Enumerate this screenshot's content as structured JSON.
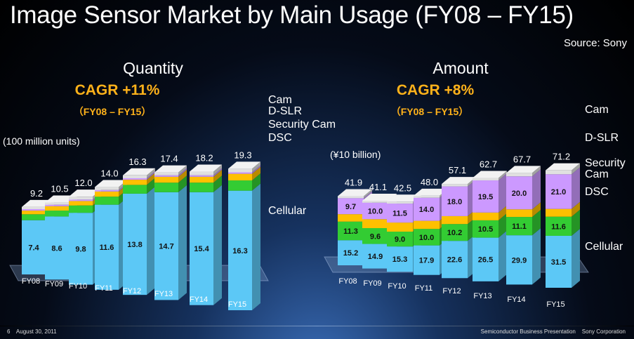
{
  "page": {
    "title": "Image Sensor Market by Main Usage (FY08 – FY15)",
    "source": "Source: Sony",
    "footer_page": "6",
    "footer_date": "August 30, 2011",
    "footer_presentation": "Semiconductor Business Presentation",
    "footer_company": "Sony Corporation"
  },
  "chart_data": [
    {
      "type": "bar",
      "stacked": true,
      "heading": "Quantity",
      "cagr": "CAGR +11%",
      "period": "（FY08 – FY15）",
      "unit_label": "(100 million units)",
      "categories": [
        "FY08",
        "FY09",
        "FY10",
        "FY11",
        "FY12",
        "FY13",
        "FY14",
        "FY15"
      ],
      "totals": [
        "9.2",
        "10.5",
        "12.0",
        "14.0",
        "16.3",
        "17.4",
        "18.2",
        "19.3"
      ],
      "series": [
        {
          "name": "Cellular",
          "values": [
            7.4,
            8.6,
            9.8,
            11.6,
            13.8,
            14.7,
            15.4,
            16.3
          ],
          "labels": [
            "7.4",
            "8.6",
            "9.8",
            "11.6",
            "13.8",
            "14.7",
            "15.4",
            "16.3"
          ],
          "color": "#5cc8f6"
        },
        {
          "name": "DSC",
          "values": [
            0.8,
            0.8,
            1.0,
            1.1,
            1.2,
            1.3,
            1.3,
            1.4
          ],
          "color": "#33cc33"
        },
        {
          "name": "Security Cam",
          "values": [
            0.5,
            0.6,
            0.6,
            0.7,
            0.7,
            0.8,
            0.8,
            0.9
          ],
          "color": "#ffc000"
        },
        {
          "name": "D-SLR",
          "values": [
            0.2,
            0.2,
            0.2,
            0.2,
            0.2,
            0.2,
            0.2,
            0.2
          ],
          "color": "#cc99ff"
        },
        {
          "name": "Cam",
          "values": [
            0.3,
            0.3,
            0.4,
            0.4,
            0.4,
            0.4,
            0.5,
            0.5
          ],
          "color": "#e0e0e0"
        }
      ],
      "legend": [
        "Cam",
        "D-SLR",
        "Security Cam",
        "DSC",
        "Cellular"
      ],
      "ylim": [
        0,
        20
      ]
    },
    {
      "type": "bar",
      "stacked": true,
      "heading": "Amount",
      "cagr": "CAGR +8%",
      "period": "（FY08 – FY15）",
      "unit_label": "(¥10 billion)",
      "categories": [
        "FY08",
        "FY09",
        "FY10",
        "FY11",
        "FY12",
        "FY13",
        "FY14",
        "FY15"
      ],
      "totals": [
        "41.9",
        "41.1",
        "42.5",
        "48.0",
        "57.1",
        "62.7",
        "67.7",
        "71.2"
      ],
      "series": [
        {
          "name": "Cellular",
          "values": [
            15.2,
            14.9,
            15.3,
            17.9,
            22.6,
            26.5,
            29.9,
            31.5
          ],
          "labels": [
            "15.2",
            "14.9",
            "15.3",
            "17.9",
            "22.6",
            "26.5",
            "29.9",
            "31.5"
          ],
          "color": "#5cc8f6"
        },
        {
          "name": "DSC",
          "values": [
            11.3,
            9.6,
            9.0,
            10.0,
            10.2,
            10.5,
            11.1,
            11.6
          ],
          "labels": [
            "11.3",
            "9.6",
            "9.0",
            "10.0",
            "10.2",
            "10.5",
            "11.1",
            "11.6"
          ],
          "color": "#33cc33"
        },
        {
          "name": "Security Cam",
          "values": [
            4.5,
            5.4,
            5.5,
            4.9,
            4.8,
            4.7,
            4.6,
            4.7
          ],
          "color": "#ffc000"
        },
        {
          "name": "D-SLR",
          "values": [
            9.7,
            10.0,
            11.5,
            14.0,
            18.0,
            19.5,
            20.0,
            21.0
          ],
          "labels": [
            "9.7",
            "10.0",
            "11.5",
            "14.0",
            "18.0",
            "19.5",
            "20.0",
            "21.0"
          ],
          "color": "#cc99ff"
        },
        {
          "name": "Cam",
          "values": [
            1.2,
            1.2,
            1.2,
            1.2,
            1.5,
            1.5,
            2.1,
            2.4
          ],
          "color": "#e0e0e0"
        }
      ],
      "legend": [
        "Cam",
        "D-SLR",
        "Security Cam",
        "DSC",
        "Cellular"
      ],
      "ylim": [
        0,
        75
      ]
    }
  ]
}
